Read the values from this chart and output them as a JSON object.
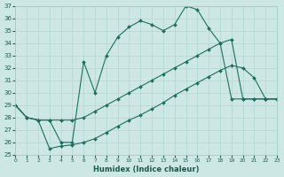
{
  "xlabel": "Humidex (Indice chaleur)",
  "bg_color": "#cde8e4",
  "grid_color": "#b0d8d0",
  "line_color": "#1a7060",
  "ylim": [
    25,
    37
  ],
  "xlim": [
    0,
    23
  ],
  "yticks": [
    25,
    26,
    27,
    28,
    29,
    30,
    31,
    32,
    33,
    34,
    35,
    36,
    37
  ],
  "xticks": [
    0,
    1,
    2,
    3,
    4,
    5,
    6,
    7,
    8,
    9,
    10,
    11,
    12,
    13,
    14,
    15,
    16,
    17,
    18,
    19,
    20,
    21,
    22,
    23
  ],
  "line1_x": [
    0,
    1,
    2,
    3,
    4,
    5,
    6,
    7,
    8,
    9,
    10,
    11,
    12,
    13,
    14,
    15,
    16,
    17,
    18,
    19,
    20,
    21,
    22,
    23
  ],
  "line1_y": [
    29.0,
    28.0,
    27.8,
    27.8,
    26.0,
    26.0,
    32.5,
    30.0,
    33.0,
    34.5,
    35.3,
    35.8,
    35.5,
    35.0,
    35.5,
    37.0,
    36.7,
    35.2,
    34.0,
    29.5,
    29.5,
    29.5,
    29.5,
    29.5
  ],
  "line2_x": [
    0,
    1,
    2,
    3,
    4,
    5,
    6,
    7,
    8,
    9,
    10,
    11,
    12,
    13,
    14,
    15,
    16,
    17,
    18,
    19,
    20,
    21,
    22,
    23
  ],
  "line2_y": [
    29.0,
    28.0,
    27.8,
    27.8,
    27.8,
    27.8,
    28.0,
    28.5,
    29.0,
    29.5,
    30.0,
    30.5,
    31.0,
    31.5,
    32.0,
    32.5,
    33.0,
    33.5,
    34.0,
    34.3,
    29.5,
    29.5,
    29.5,
    29.5
  ],
  "line3_x": [
    0,
    1,
    2,
    3,
    4,
    5,
    6,
    7,
    8,
    9,
    10,
    11,
    12,
    13,
    14,
    15,
    16,
    17,
    18,
    19,
    20,
    21,
    22,
    23
  ],
  "line3_y": [
    29.0,
    28.0,
    27.8,
    25.5,
    25.7,
    25.8,
    26.0,
    26.3,
    26.8,
    27.3,
    27.8,
    28.2,
    28.7,
    29.2,
    29.8,
    30.3,
    30.8,
    31.3,
    31.8,
    32.2,
    32.0,
    31.2,
    29.5,
    29.5
  ]
}
